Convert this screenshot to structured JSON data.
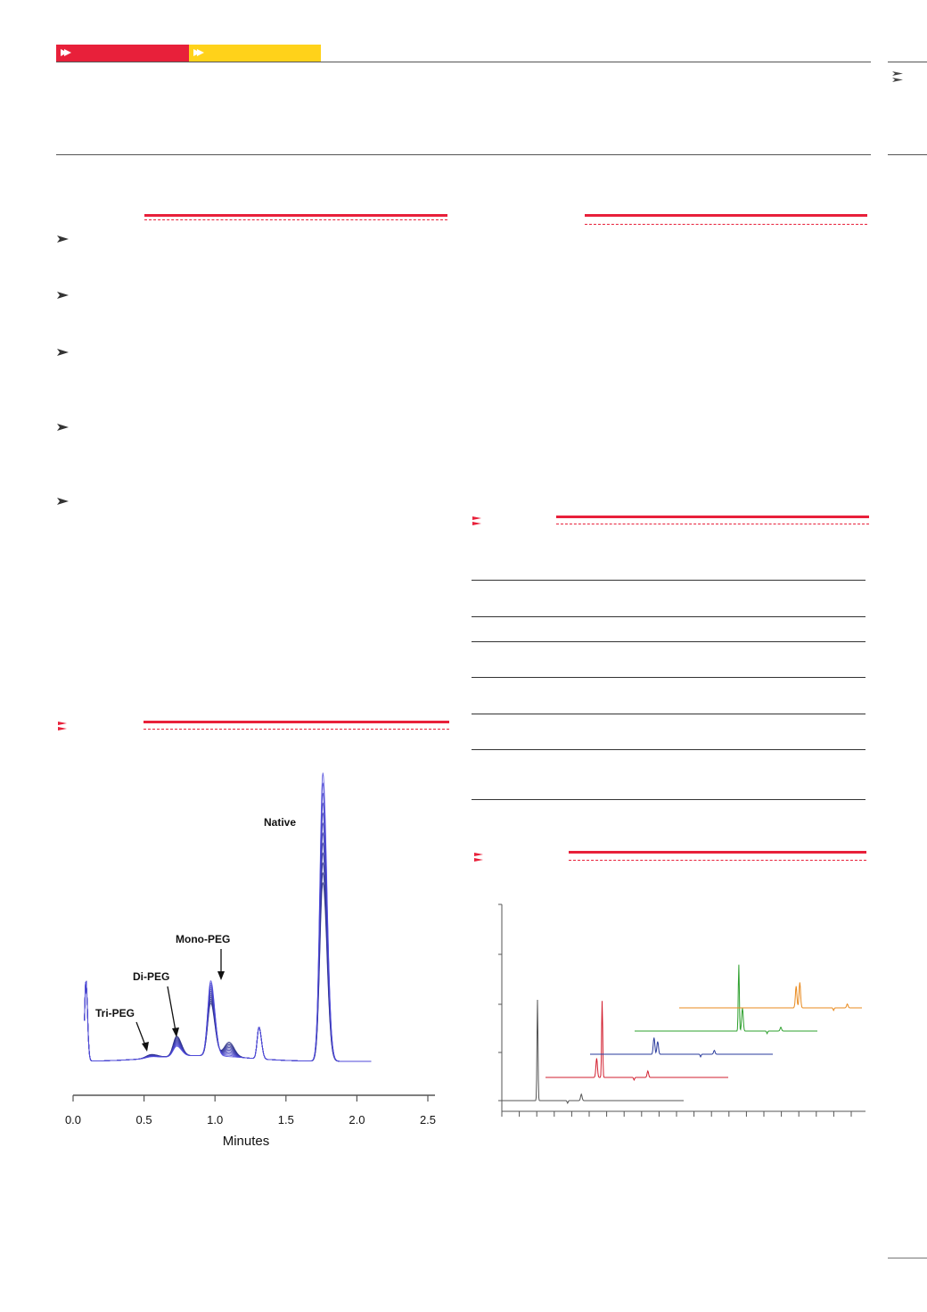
{
  "colors": {
    "red": "#e8203a",
    "yellow": "#ffd21a",
    "trace_blue": "#3a3f9e"
  },
  "header": {
    "tabs": [
      {
        "color": "#e8203a",
        "icon": "chevron-right-icon"
      },
      {
        "color": "#ffd21a",
        "icon": "chevron-right-icon"
      }
    ]
  },
  "chart_data": [
    {
      "type": "line",
      "x_ticks": [
        "0.0",
        "0.5",
        "1.0",
        "1.5",
        "2.0",
        "2.5"
      ],
      "xlim": [
        0,
        2.5
      ],
      "xlabel": "Minutes",
      "annotations": [
        "Native",
        "Mono-PEG",
        "Di-PEG",
        "Tri-PEG"
      ],
      "series_count": 12,
      "peaks": [
        {
          "label": "",
          "x": 0.09,
          "height": 0.28
        },
        {
          "label": "Tri-PEG",
          "x": 0.55,
          "height": 0.01
        },
        {
          "label": "Di-PEG",
          "x": 0.73,
          "height": 0.07
        },
        {
          "label": "Mono-PEG",
          "x": 0.97,
          "height": 0.26
        },
        {
          "label": "",
          "x": 1.31,
          "height": 0.11
        },
        {
          "label": "Native",
          "x": 1.76,
          "height": 1.0
        }
      ],
      "x_range_drawn": [
        0.08,
        2.1
      ]
    },
    {
      "type": "line",
      "series": [
        {
          "color": "#555555",
          "peaks": [
            {
              "x": 0.2,
              "h": 0.79
            },
            {
              "x": 0.44,
              "h": 0.05
            }
          ]
        },
        {
          "color": "#d21f2f",
          "peaks": [
            {
              "x": 0.31,
              "h": 0.6
            },
            {
              "x": 0.28,
              "h": 0.15
            },
            {
              "x": 0.56,
              "h": 0.05
            }
          ]
        },
        {
          "color": "#2a3b9c",
          "peaks": [
            {
              "x": 0.35,
              "h": 0.13
            },
            {
              "x": 0.37,
              "h": 0.1
            },
            {
              "x": 0.68,
              "h": 0.03
            }
          ]
        },
        {
          "color": "#2ea02e",
          "peaks": [
            {
              "x": 0.57,
              "h": 0.52
            },
            {
              "x": 0.59,
              "h": 0.18
            },
            {
              "x": 0.8,
              "h": 0.03
            }
          ]
        },
        {
          "color": "#e98a1e",
          "peaks": [
            {
              "x": 0.64,
              "h": 0.17
            },
            {
              "x": 0.66,
              "h": 0.2
            },
            {
              "x": 0.92,
              "h": 0.03
            }
          ]
        }
      ]
    }
  ]
}
